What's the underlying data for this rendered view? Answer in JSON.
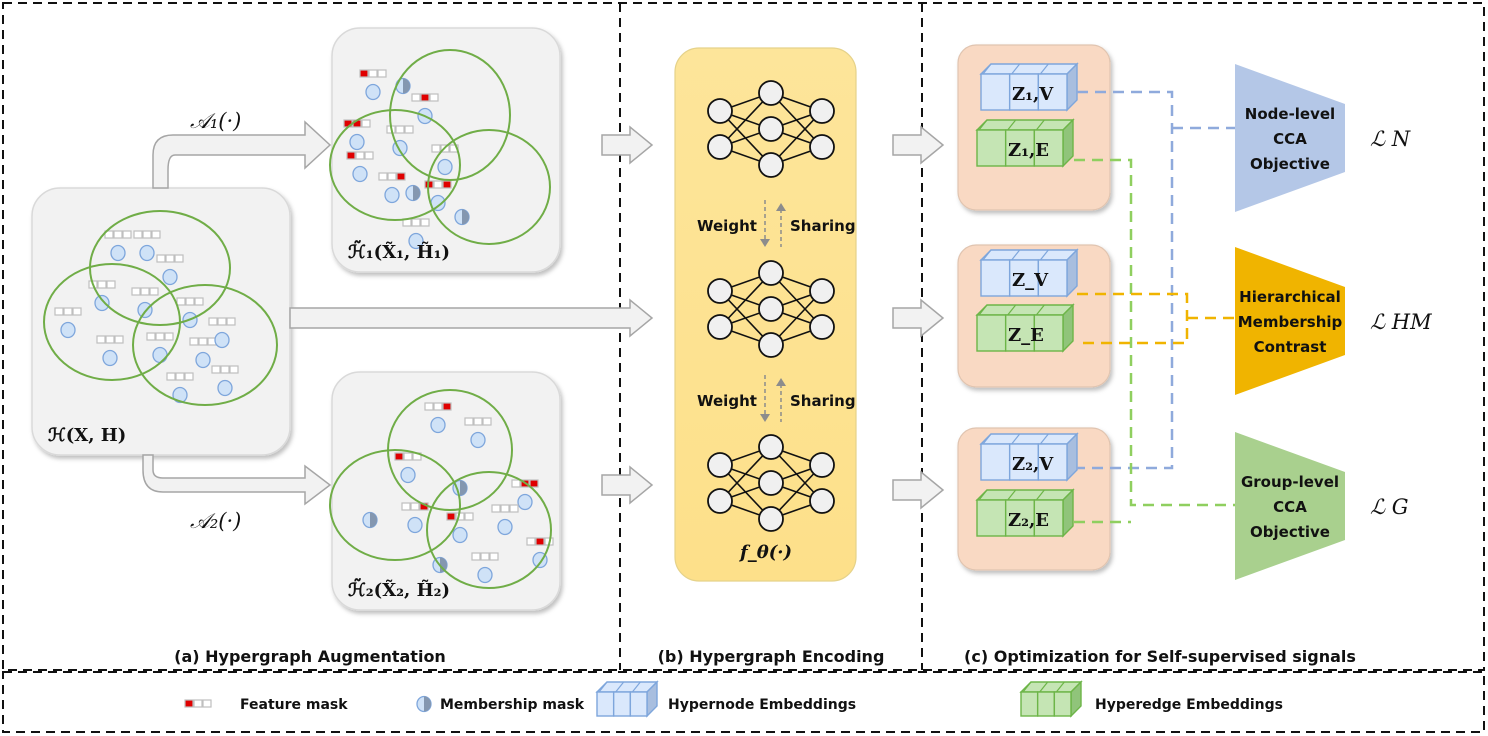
{
  "sections": {
    "a": "(a) Hypergraph Augmentation",
    "b": "(b) Hypergraph Encoding",
    "c": "(c) Optimization for Self-supervised signals"
  },
  "augmentation": {
    "original_label": "ℋ(X, H)",
    "aug1_op": "𝒜₁(·)",
    "aug2_op": "𝒜₂(·)",
    "aug1_label": "ℋ̃₁(X̃₁, H̃₁)",
    "aug2_label": "ℋ̃₂(X̃₂, H̃₂)"
  },
  "encoder": {
    "weight": "Weight",
    "sharing": "Sharing",
    "function_label": "f_θ(·)"
  },
  "embeddings": [
    {
      "node": "Z₁,V",
      "edge": "Z₁,E"
    },
    {
      "node": "Z_V",
      "edge": "Z_E"
    },
    {
      "node": "Z₂,V",
      "edge": "Z₂,E"
    }
  ],
  "objectives": [
    {
      "lines": [
        "Node-level",
        "CCA",
        "Objective"
      ],
      "loss": "ℒ N",
      "color": "#b4c7e7"
    },
    {
      "lines": [
        "Hierarchical",
        "Membership",
        "Contrast"
      ],
      "loss": "ℒ HM",
      "color": "#f0b400"
    },
    {
      "lines": [
        "Group-level",
        "CCA",
        "Objective"
      ],
      "loss": "ℒ G",
      "color": "#a9d08e"
    }
  ],
  "legend": {
    "feature_mask": "Feature mask",
    "membership_mask": "Membership mask",
    "hypernode": "Hypernode Embeddings",
    "hyperedge": "Hyperedge Embeddings"
  },
  "colors": {
    "hyperedge_ring": "#70ad47",
    "node_fill": "#cfe2f7",
    "node_stroke": "#7ea6dc",
    "mask_red": "#e00000",
    "encoder_fill": "#fde59a",
    "embedding_panel": "#f9d9c3",
    "node_link": "#8faadc",
    "edge_link": "#8fcf5f",
    "hm_link": "#f0b400"
  }
}
